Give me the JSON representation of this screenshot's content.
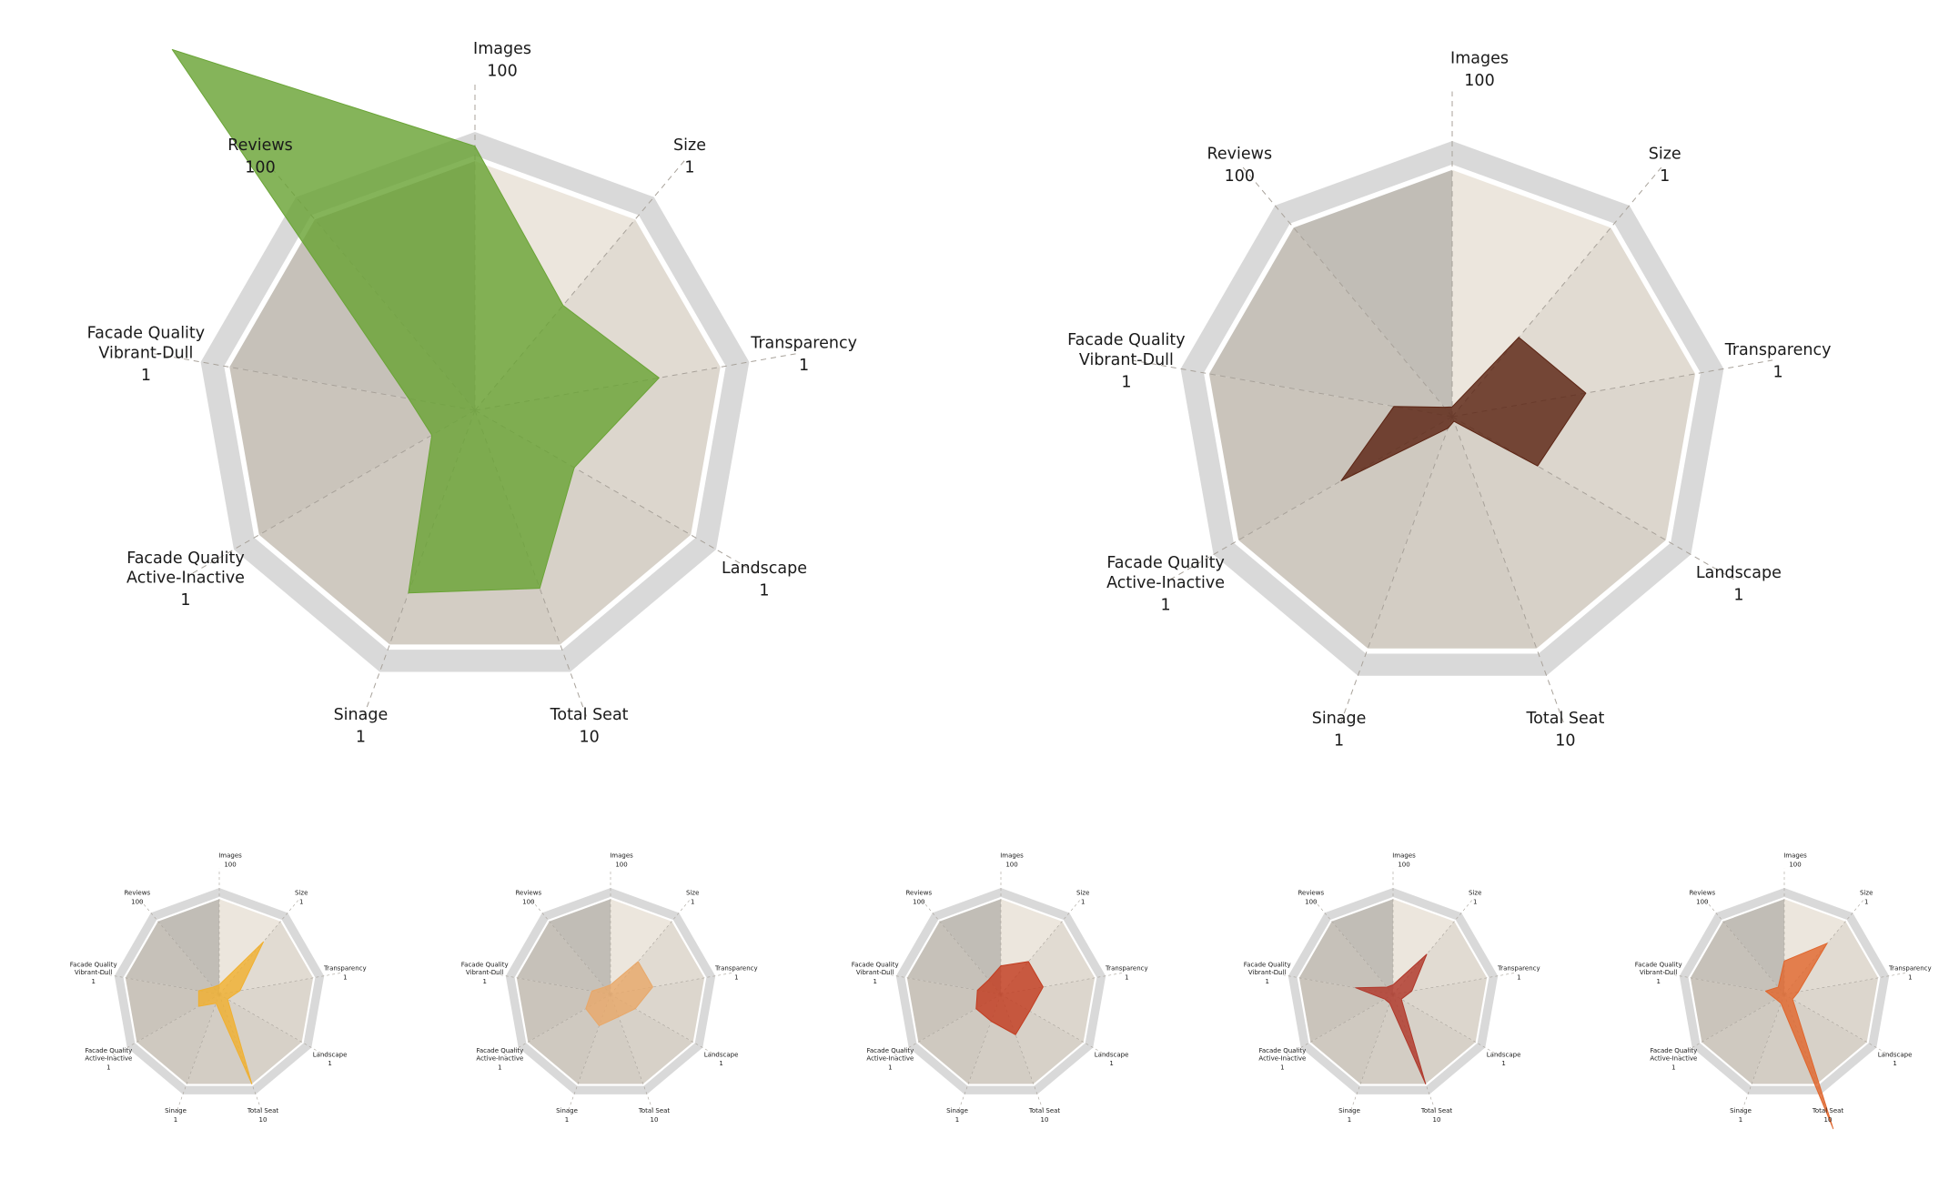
{
  "axes": [
    {
      "name": [
        "Images"
      ],
      "max": "100"
    },
    {
      "name": [
        "Size"
      ],
      "max": "1"
    },
    {
      "name": [
        "Transparency"
      ],
      "max": "1"
    },
    {
      "name": [
        "Landscape"
      ],
      "max": "1"
    },
    {
      "name": [
        "Total Seat"
      ],
      "max": "10"
    },
    {
      "name": [
        "Sinage"
      ],
      "max": "1"
    },
    {
      "name": [
        "Facade Quality",
        "Active-Inactive"
      ],
      "max": "1"
    },
    {
      "name": [
        "Facade Quality",
        "Vibrant-Dull"
      ],
      "max": "1"
    },
    {
      "name": [
        "Reviews"
      ],
      "max": "100"
    }
  ],
  "sector_colors": [
    "#ece6dd",
    "#e1dbd2",
    "#dcd6cd",
    "#d7d1c8",
    "#d3cdc4",
    "#cfc9c0",
    "#cac4bb",
    "#c6c1b9",
    "#c1bdb6"
  ],
  "ring_color": "#d9d9d9",
  "chart_data": [
    {
      "type": "radar",
      "title": "",
      "categories": [
        "Images",
        "Size",
        "Transparency",
        "Landscape",
        "Total Seat",
        "Sinage",
        "Facade Quality Active-Inactive",
        "Facade Quality Vibrant-Dull",
        "Reviews"
      ],
      "series": [
        {
          "color": "#6aa436",
          "values": [
            1.06,
            0.55,
            0.75,
            0.46,
            0.76,
            0.78,
            0.2,
            0.27,
            1.89
          ]
        }
      ]
    },
    {
      "type": "radar",
      "title": "",
      "categories": [
        "Images",
        "Size",
        "Transparency",
        "Landscape",
        "Total Seat",
        "Sinage",
        "Facade Quality Active-Inactive",
        "Facade Quality Vibrant-Dull",
        "Reviews"
      ],
      "series": [
        {
          "color": "#5c2413",
          "values": [
            0.04,
            0.42,
            0.55,
            0.4,
            0.02,
            0.05,
            0.52,
            0.24,
            0.05
          ]
        }
      ]
    },
    {
      "type": "radar",
      "title": "",
      "categories": [
        "Images",
        "Size",
        "Transparency",
        "Landscape",
        "Total Seat",
        "Sinage",
        "Facade Quality Active-Inactive",
        "Facade Quality Vibrant-Dull",
        "Reviews"
      ],
      "series": [
        {
          "color": "#f0b030",
          "values": [
            0.1,
            0.72,
            0.22,
            0.1,
            1.0,
            0.1,
            0.25,
            0.22,
            0.1
          ]
        }
      ]
    },
    {
      "type": "radar",
      "title": "",
      "categories": [
        "Images",
        "Size",
        "Transparency",
        "Landscape",
        "Total Seat",
        "Sinage",
        "Facade Quality Active-Inactive",
        "Facade Quality Vibrant-Dull",
        "Reviews"
      ],
      "series": [
        {
          "color": "#e8a86a",
          "values": [
            0.1,
            0.45,
            0.45,
            0.3,
            0.25,
            0.35,
            0.3,
            0.2,
            0.1
          ]
        }
      ]
    },
    {
      "type": "radar",
      "title": "",
      "categories": [
        "Images",
        "Size",
        "Transparency",
        "Landscape",
        "Total Seat",
        "Sinage",
        "Facade Quality Active-Inactive",
        "Facade Quality Vibrant-Dull",
        "Reviews"
      ],
      "series": [
        {
          "color": "#c23c20",
          "values": [
            0.3,
            0.45,
            0.45,
            0.35,
            0.45,
            0.3,
            0.3,
            0.25,
            0.2
          ]
        }
      ]
    },
    {
      "type": "radar",
      "title": "",
      "categories": [
        "Images",
        "Size",
        "Transparency",
        "Landscape",
        "Total Seat",
        "Sinage",
        "Facade Quality Active-Inactive",
        "Facade Quality Vibrant-Dull",
        "Reviews"
      ],
      "series": [
        {
          "color": "#b0372a",
          "values": [
            0.1,
            0.55,
            0.2,
            0.1,
            1.0,
            0.1,
            0.1,
            0.4,
            0.1
          ]
        }
      ]
    },
    {
      "type": "radar",
      "title": "",
      "categories": [
        "Images",
        "Size",
        "Transparency",
        "Landscape",
        "Total Seat",
        "Sinage",
        "Facade Quality Active-Inactive",
        "Facade Quality Vibrant-Dull",
        "Reviews"
      ],
      "series": [
        {
          "color": "#e0662d",
          "values": [
            0.35,
            0.7,
            0.15,
            0.1,
            1.5,
            0.1,
            0.1,
            0.2,
            0.1
          ]
        }
      ]
    }
  ]
}
